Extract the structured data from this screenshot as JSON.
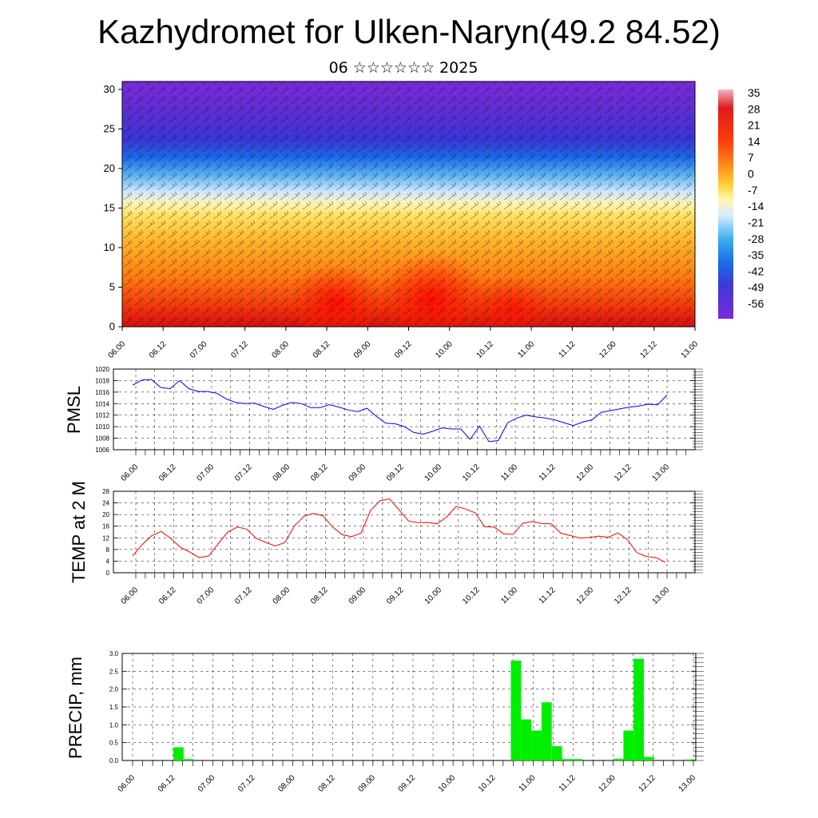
{
  "title": "Kazhydromet for Ulken-Naryn(49.2 84.52)",
  "subtitle": "06 ☆☆☆☆☆☆ 2025",
  "colorbar": {
    "labels": [
      "35",
      "28",
      "21",
      "14",
      "7",
      "0",
      "-7",
      "-14",
      "-21",
      "-28",
      "-35",
      "-42",
      "-49",
      "-56"
    ]
  },
  "chart_data": [
    {
      "type": "heatmap",
      "yticks": [
        "0",
        "5",
        "10",
        "15",
        "20",
        "25",
        "30"
      ],
      "ylim": [
        0,
        31
      ],
      "xticks": [
        "06.00",
        "06.12",
        "07.00",
        "07.12",
        "08.00",
        "08.12",
        "09.00",
        "09.12",
        "10.00",
        "10.12",
        "11.00",
        "11.12",
        "12.00",
        "12.12",
        "13.00"
      ],
      "colors": {
        "cold": "#6a1fd8",
        "freezing": "#ffffff",
        "warm": "#ff1500"
      }
    },
    {
      "type": "line",
      "ylabel": "PMSL",
      "ylim": [
        1006,
        1020
      ],
      "yticks": [
        "1006",
        "1008",
        "1010",
        "1012",
        "1014",
        "1016",
        "1018",
        "1020"
      ],
      "xticks": [
        "06.00",
        "06.12",
        "07.00",
        "07.12",
        "08.00",
        "08.12",
        "09.00",
        "09.12",
        "10.00",
        "10.12",
        "11.00",
        "11.12",
        "12.00",
        "12.12",
        "13.00"
      ],
      "color": "#0000ff",
      "values": [
        1017.2,
        1018.1,
        1018.2,
        1016.8,
        1016.6,
        1018.0,
        1016.6,
        1016.1,
        1016.1,
        1015.8,
        1014.8,
        1014.2,
        1014.0,
        1014.1,
        1013.5,
        1013.0,
        1013.7,
        1014.2,
        1014.0,
        1013.3,
        1013.3,
        1013.8,
        1013.4,
        1012.9,
        1012.6,
        1013.2,
        1011.8,
        1010.6,
        1010.5,
        1010.0,
        1009.0,
        1008.7,
        1009.2,
        1009.8,
        1009.6,
        1009.6,
        1007.8,
        1010.1,
        1007.4,
        1007.6,
        1010.7,
        1011.5,
        1012.0,
        1011.7,
        1011.5,
        1011.2,
        1010.7,
        1010.2,
        1010.8,
        1011.2,
        1012.5,
        1012.8,
        1013.1,
        1013.4,
        1013.6,
        1013.9,
        1013.8,
        1015.5
      ]
    },
    {
      "type": "line",
      "ylabel": "TEMP at 2 M",
      "ylim": [
        0,
        28
      ],
      "yticks": [
        "0",
        "4",
        "8",
        "12",
        "16",
        "20",
        "24",
        "28"
      ],
      "xticks": [
        "06.00",
        "06.12",
        "07.00",
        "07.12",
        "08.00",
        "08.12",
        "09.00",
        "09.12",
        "10.00",
        "10.12",
        "11.00",
        "11.12",
        "12.00",
        "12.12",
        "13.00"
      ],
      "color": "#ff0000",
      "values": [
        5.8,
        9.7,
        12.7,
        14.2,
        11.8,
        8.8,
        7.1,
        5.2,
        5.8,
        10.0,
        14.0,
        15.7,
        15.0,
        11.8,
        10.4,
        9.2,
        10.4,
        16.1,
        19.4,
        20.4,
        19.6,
        15.8,
        13.1,
        12.4,
        13.6,
        21.4,
        24.8,
        25.4,
        21.6,
        17.8,
        17.2,
        17.3,
        16.8,
        19.2,
        22.8,
        21.9,
        20.6,
        15.8,
        15.7,
        13.4,
        13.2,
        17.0,
        17.6,
        16.9,
        16.8,
        13.6,
        12.8,
        11.9,
        12.1,
        12.6,
        12.2,
        13.7,
        11.4,
        6.9,
        5.6,
        5.2,
        3.6
      ]
    },
    {
      "type": "bar",
      "ylabel": "PRECIP, mm",
      "ylim": [
        0,
        3
      ],
      "yticks": [
        "0.0",
        "0.5",
        "1.0",
        "1.5",
        "2.0",
        "2.5",
        "3.0"
      ],
      "xticks": [
        "06.00",
        "06.12",
        "07.00",
        "07.12",
        "08.00",
        "08.12",
        "09.00",
        "09.12",
        "10.00",
        "10.12",
        "11.00",
        "11.12",
        "12.00",
        "12.12",
        "13.00"
      ],
      "color": "#00ee00",
      "values": [
        0,
        0,
        0,
        0,
        0,
        0.37,
        0.04,
        0,
        0,
        0,
        0,
        0,
        0,
        0,
        0,
        0,
        0,
        0,
        0,
        0,
        0,
        0,
        0,
        0,
        0,
        0,
        0,
        0,
        0,
        0,
        0,
        0,
        0,
        0,
        0,
        0,
        0,
        0,
        2.8,
        1.15,
        0.84,
        1.63,
        0.4,
        0.04,
        0.04,
        0,
        0,
        0,
        0.05,
        0.84,
        2.85,
        0.1,
        0,
        0,
        0,
        0.03
      ]
    }
  ]
}
